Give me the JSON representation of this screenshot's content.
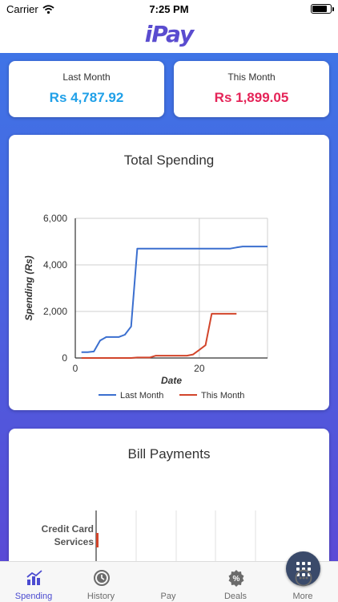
{
  "status": {
    "carrier": "Carrier",
    "time": "7:25 PM"
  },
  "app": {
    "title": "iPay"
  },
  "summary": {
    "last_month_label": "Last Month",
    "last_month_value": "Rs 4,787.92",
    "this_month_label": "This Month",
    "this_month_value": "Rs 1,899.05"
  },
  "chart_data": {
    "type": "line",
    "title": "Total Spending",
    "xlabel": "Date",
    "ylabel": "Spending (Rs)",
    "xlim": [
      0,
      31
    ],
    "ylim": [
      0,
      6000
    ],
    "x_ticks": [
      0,
      20
    ],
    "y_ticks": [
      0,
      2000,
      4000,
      6000
    ],
    "y_tick_labels": [
      "0",
      "2,000",
      "4,000",
      "6,000"
    ],
    "grid": true,
    "legend": "bottom",
    "series": [
      {
        "name": "Last Month",
        "color": "#3b6fcf",
        "x": [
          1,
          2,
          3,
          4,
          5,
          6,
          7,
          8,
          9,
          10,
          11,
          12,
          13,
          14,
          15,
          16,
          17,
          18,
          19,
          20,
          21,
          22,
          23,
          24,
          25,
          26,
          27,
          28,
          29,
          30,
          31
        ],
        "y": [
          250,
          250,
          280,
          750,
          900,
          900,
          900,
          1000,
          1350,
          4700,
          4700,
          4700,
          4700,
          4700,
          4700,
          4700,
          4700,
          4700,
          4700,
          4700,
          4700,
          4700,
          4700,
          4700,
          4700,
          4750,
          4788,
          4788,
          4788,
          4788,
          4788
        ]
      },
      {
        "name": "This Month",
        "color": "#d2452b",
        "x": [
          1,
          2,
          3,
          4,
          5,
          6,
          7,
          8,
          9,
          10,
          11,
          12,
          13,
          14,
          15,
          16,
          17,
          18,
          19,
          20,
          21,
          22,
          23,
          24,
          25,
          26
        ],
        "y": [
          0,
          0,
          0,
          0,
          0,
          0,
          0,
          0,
          0,
          20,
          20,
          20,
          100,
          100,
          100,
          100,
          100,
          100,
          150,
          350,
          550,
          1899,
          1899,
          1899,
          1899,
          1899
        ]
      }
    ]
  },
  "bills": {
    "title": "Bill Payments",
    "categories": [
      "Credit Card Services"
    ],
    "color": "#d2452b"
  },
  "tabs": [
    {
      "label": "Spending",
      "icon": "bar-chart-icon"
    },
    {
      "label": "History",
      "icon": "clock-icon"
    },
    {
      "label": "Pay",
      "icon": "grid-icon"
    },
    {
      "label": "Deals",
      "icon": "percent-badge-icon"
    },
    {
      "label": "More",
      "icon": "more-dots-icon"
    }
  ],
  "colors": {
    "accent": "#4b4bd0",
    "last_month": "#20a0e8",
    "this_month": "#e52458"
  }
}
